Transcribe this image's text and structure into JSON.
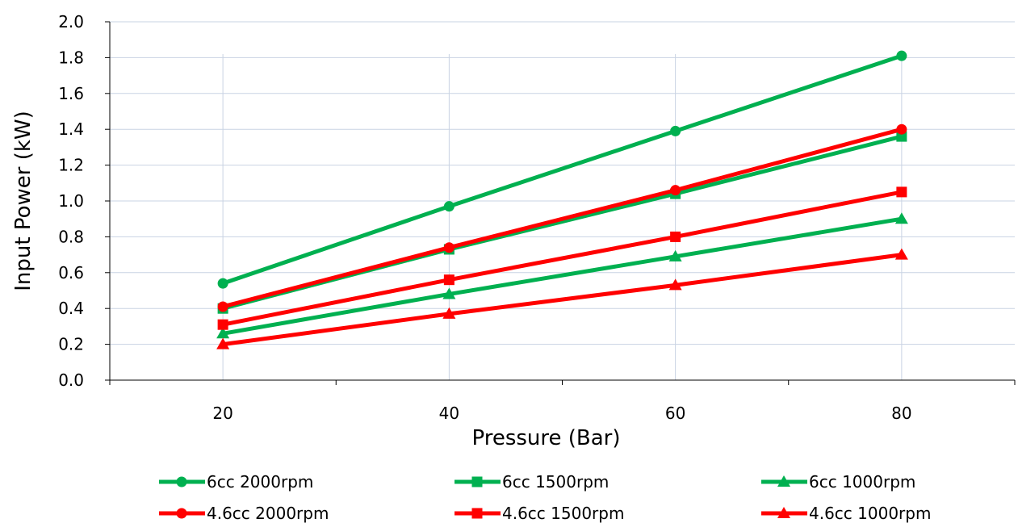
{
  "chart_data": {
    "type": "line",
    "xlabel": "Pressure (Bar)",
    "ylabel": "Input Power (kW)",
    "x": [
      20,
      40,
      60,
      80
    ],
    "x_ticks": [
      "20",
      "40",
      "60",
      "80"
    ],
    "xlim": [
      10,
      90
    ],
    "ylim": [
      0,
      2.0
    ],
    "y_ticks": [
      "0.0",
      "0.2",
      "0.4",
      "0.6",
      "0.8",
      "1.0",
      "1.2",
      "1.4",
      "1.6",
      "1.8",
      "2.0"
    ],
    "grid": "horizontal and vertical at data points",
    "legend_position": "bottom",
    "series": [
      {
        "name": "6cc 2000rpm",
        "color": "#00B050",
        "marker": "circle",
        "values": [
          0.54,
          0.97,
          1.39,
          1.81
        ]
      },
      {
        "name": "6cc 1500rpm",
        "color": "#00B050",
        "marker": "square",
        "values": [
          0.4,
          0.73,
          1.04,
          1.36
        ]
      },
      {
        "name": "6cc 1000rpm",
        "color": "#00B050",
        "marker": "triangle",
        "values": [
          0.26,
          0.48,
          0.69,
          0.9
        ]
      },
      {
        "name": "4.6cc 2000rpm",
        "color": "#FF0000",
        "marker": "circle",
        "values": [
          0.41,
          0.74,
          1.06,
          1.4
        ]
      },
      {
        "name": "4.6cc 1500rpm",
        "color": "#FF0000",
        "marker": "square",
        "values": [
          0.31,
          0.56,
          0.8,
          1.05
        ]
      },
      {
        "name": "4.6cc 1000rpm",
        "color": "#FF0000",
        "marker": "triangle",
        "values": [
          0.2,
          0.37,
          0.53,
          0.7
        ]
      }
    ]
  }
}
